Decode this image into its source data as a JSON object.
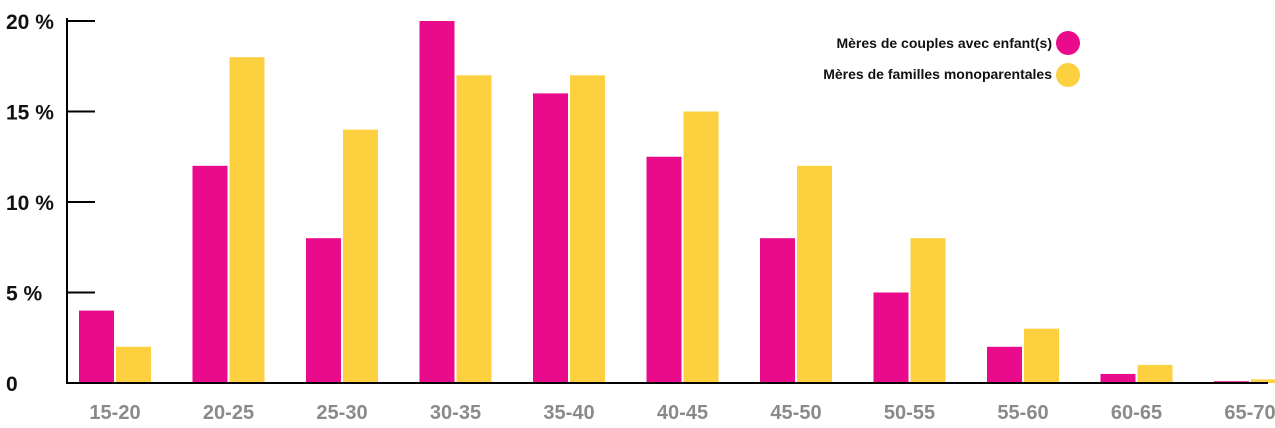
{
  "chart_data": {
    "type": "bar",
    "title": "",
    "xlabel": "",
    "ylabel": "",
    "ylim": [
      0,
      20
    ],
    "yticks": [
      0,
      5,
      10,
      15,
      20
    ],
    "ytick_labels": [
      "0",
      "5 %",
      "10 %",
      "15 %",
      "20 %"
    ],
    "categories": [
      "15-20",
      "20-25",
      "25-30",
      "30-35",
      "35-40",
      "40-45",
      "45-50",
      "50-55",
      "55-60",
      "60-65",
      "65-70"
    ],
    "series": [
      {
        "name": "Mères de couples avec enfant(s)",
        "color": "#ea0a8c",
        "values": [
          4,
          12,
          8,
          20,
          16,
          12.5,
          8,
          5,
          2,
          0.5,
          0.1
        ]
      },
      {
        "name": "Mères de familles monoparentales",
        "color": "#fdd040",
        "values": [
          2,
          18,
          14,
          17,
          17,
          15,
          12,
          8,
          3,
          1,
          0.2
        ]
      }
    ],
    "grid": false,
    "legend_position": "top-right"
  }
}
